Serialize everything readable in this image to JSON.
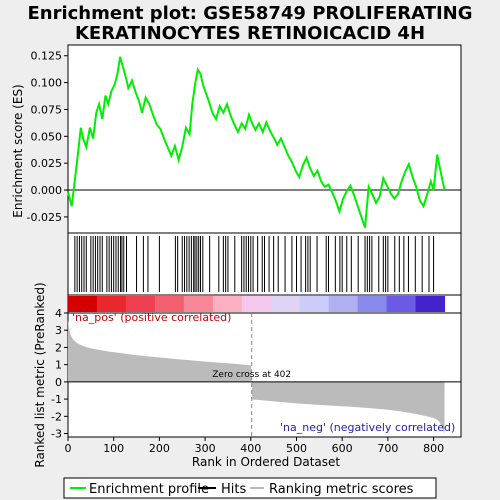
{
  "chart_data": {
    "type": "line",
    "title_line1": "Enrichment plot: GSE58749 PROLIFERATING",
    "title_line2": "KERATINOCYTES RETINOICACID 4H",
    "xlabel": "Rank in Ordered Dataset",
    "ylabel_top": "Enrichment score (ES)",
    "ylabel_bottom": "Ranked list metric (PreRanked)",
    "xlim": [
      0,
      860
    ],
    "es_ylim": [
      -0.04,
      0.135
    ],
    "metric_ylim": [
      -3.2,
      4
    ],
    "x_ticks": [
      0,
      100,
      200,
      300,
      400,
      500,
      600,
      700,
      800
    ],
    "es_ticks": [
      -0.025,
      0.0,
      0.025,
      0.05,
      0.075,
      0.1,
      0.125
    ],
    "es_tick_labels": [
      "-0.025",
      "0.000",
      "0.025",
      "0.050",
      "0.075",
      "0.100",
      "0.125"
    ],
    "metric_ticks": [
      -3,
      -2,
      -1,
      0,
      1,
      2,
      3,
      4
    ],
    "es_line_color": "#00ee00",
    "es_curve": {
      "x": [
        0,
        8,
        15,
        22,
        28,
        33,
        40,
        48,
        55,
        62,
        68,
        75,
        82,
        88,
        95,
        102,
        108,
        114,
        120,
        126,
        132,
        140,
        148,
        156,
        162,
        170,
        178,
        186,
        194,
        202,
        210,
        218,
        226,
        234,
        242,
        250,
        258,
        266,
        272,
        278,
        284,
        290,
        296,
        302,
        308,
        316,
        324,
        332,
        340,
        348,
        356,
        364,
        372,
        380,
        388,
        396,
        402,
        410,
        418,
        426,
        434,
        442,
        450,
        458,
        466,
        474,
        482,
        490,
        498,
        506,
        514,
        522,
        530,
        538,
        546,
        554,
        562,
        570,
        578,
        586,
        594,
        602,
        610,
        618,
        626,
        634,
        642,
        650,
        658,
        666,
        674,
        682,
        690,
        698,
        706,
        714,
        722,
        730,
        738,
        746,
        754,
        762,
        770,
        778,
        786,
        794,
        800,
        808,
        816,
        824
      ],
      "y": [
        -0.002,
        -0.015,
        0.01,
        0.035,
        0.058,
        0.048,
        0.04,
        0.058,
        0.048,
        0.072,
        0.08,
        0.066,
        0.088,
        0.08,
        0.092,
        0.098,
        0.108,
        0.124,
        0.115,
        0.106,
        0.095,
        0.102,
        0.091,
        0.082,
        0.072,
        0.086,
        0.08,
        0.07,
        0.061,
        0.057,
        0.048,
        0.04,
        0.032,
        0.041,
        0.028,
        0.04,
        0.058,
        0.052,
        0.08,
        0.098,
        0.112,
        0.108,
        0.097,
        0.09,
        0.083,
        0.072,
        0.066,
        0.078,
        0.072,
        0.08,
        0.069,
        0.061,
        0.054,
        0.062,
        0.057,
        0.07,
        0.063,
        0.056,
        0.062,
        0.054,
        0.063,
        0.055,
        0.049,
        0.042,
        0.048,
        0.04,
        0.032,
        0.026,
        0.018,
        0.012,
        0.023,
        0.03,
        0.02,
        0.013,
        0.018,
        0.008,
        0.003,
        0.005,
        -0.002,
        -0.01,
        -0.02,
        -0.008,
        -0.001,
        0.004,
        -0.005,
        -0.015,
        -0.025,
        -0.035,
        0.003,
        -0.004,
        -0.012,
        -0.006,
        0.011,
        0.004,
        -0.003,
        -0.008,
        -0.004,
        0.008,
        0.017,
        0.024,
        0.012,
        0.003,
        -0.01,
        -0.015,
        -0.004,
        0.008,
        0.0,
        0.033,
        0.016,
        0.0
      ]
    },
    "hits": [
      15,
      20,
      25,
      30,
      35,
      40,
      50,
      55,
      60,
      65,
      70,
      75,
      85,
      90,
      95,
      100,
      105,
      110,
      115,
      118,
      122,
      128,
      150,
      165,
      175,
      200,
      235,
      240,
      250,
      255,
      260,
      265,
      270,
      275,
      278,
      282,
      286,
      290,
      295,
      310,
      330,
      340,
      345,
      350,
      365,
      380,
      385,
      390,
      395,
      400,
      405,
      415,
      425,
      430,
      440,
      450,
      460,
      475,
      490,
      500,
      510,
      520,
      525,
      530,
      545,
      565,
      570,
      585,
      595,
      600,
      610,
      620,
      635,
      650,
      655,
      660,
      665,
      680,
      690,
      695,
      700,
      715,
      725,
      735,
      745,
      760,
      775,
      790,
      800
    ],
    "metric_curve": {
      "x": [
        0,
        3,
        6,
        10,
        15,
        20,
        30,
        40,
        55,
        70,
        90,
        110,
        130,
        150,
        180,
        210,
        240,
        270,
        300,
        330,
        360,
        380,
        400,
        402,
        403,
        430,
        460,
        500,
        540,
        580,
        620,
        660,
        700,
        730,
        760,
        790,
        805,
        812,
        816,
        820,
        824
      ],
      "y": [
        3.6,
        3.0,
        2.7,
        2.5,
        2.35,
        2.25,
        2.12,
        2.02,
        1.92,
        1.85,
        1.76,
        1.69,
        1.62,
        1.55,
        1.47,
        1.39,
        1.32,
        1.25,
        1.18,
        1.12,
        1.06,
        1.01,
        0.97,
        0.0,
        -1.02,
        -1.08,
        -1.15,
        -1.25,
        -1.32,
        -1.38,
        -1.44,
        -1.52,
        -1.62,
        -1.72,
        -1.86,
        -2.02,
        -2.15,
        -2.3,
        -2.5,
        -2.75,
        -3.0
      ]
    },
    "zero_cross_x": 402,
    "zero_cross_label": "Zero cross at 402",
    "na_pos_label": "'na_pos' (positive correlated)",
    "na_neg_label": "'na_neg' (negatively correlated)",
    "na_pos_color": "#cc0000",
    "na_neg_color": "#2222aa",
    "metric_fill_color": "#bbbbbb",
    "heat_bar_colors": [
      "#d40000",
      "#e8282c",
      "#f04050",
      "#f36070",
      "#f78898",
      "#fab0c0",
      "#f6c8ee",
      "#e0d4f6",
      "#ccccf8",
      "#b0b0f2",
      "#8a8aec",
      "#6a5ae6",
      "#4422cc"
    ],
    "legend": [
      {
        "label": "Enrichment profile",
        "color": "#00ee00"
      },
      {
        "label": "Hits",
        "color": "#000000"
      },
      {
        "label": "Ranking metric scores",
        "color": "#bbbbbb"
      }
    ]
  }
}
